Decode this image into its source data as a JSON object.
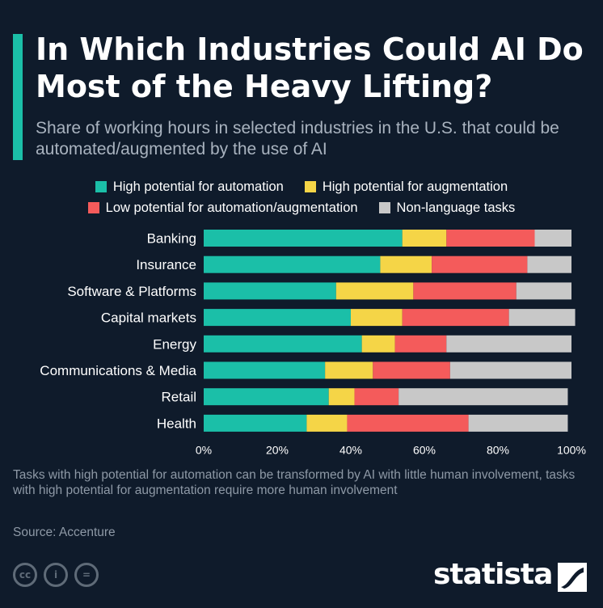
{
  "title": "In Which Industries Could AI Do Most of the Heavy Lifting?",
  "subtitle": "Share of working hours in selected industries in the U.S. that could be automated/augmented by the use of AI",
  "legend": {
    "automation": "High potential for automation",
    "augmentation": "High potential for augmentation",
    "low": "Low potential for automation/augmentation",
    "nonlanguage": "Non-language tasks"
  },
  "colors": {
    "automation": "#1bbfa8",
    "augmentation": "#f5d547",
    "low": "#f45b5b",
    "nonlanguage": "#c8c8c8",
    "accent": "#1bbfa8",
    "background": "#0f1b2b"
  },
  "note": "Tasks with high potential for automation can be transformed by AI with little human involvement, tasks with high potential for augmentation require more human involvement",
  "source": "Source: Accenture",
  "brand": "statista",
  "chart_data": {
    "type": "bar",
    "orientation": "horizontal",
    "stacked": true,
    "categories": [
      "Banking",
      "Insurance",
      "Software & Platforms",
      "Capital markets",
      "Energy",
      "Communications & Media",
      "Retail",
      "Health"
    ],
    "series": [
      {
        "name": "High potential for automation",
        "values": [
          54,
          48,
          36,
          40,
          43,
          33,
          34,
          28
        ]
      },
      {
        "name": "High potential for augmentation",
        "values": [
          12,
          14,
          21,
          14,
          9,
          13,
          7,
          11
        ]
      },
      {
        "name": "Low potential for automation/augmentation",
        "values": [
          24,
          26,
          28,
          29,
          14,
          21,
          12,
          33
        ]
      },
      {
        "name": "Non-language tasks",
        "values": [
          10,
          12,
          15,
          18,
          34,
          33,
          46,
          27
        ]
      }
    ],
    "xlim": [
      0,
      100
    ],
    "xticks": [
      "0%",
      "20%",
      "40%",
      "60%",
      "80%",
      "100%"
    ],
    "grid": false,
    "legend_position": "top"
  }
}
